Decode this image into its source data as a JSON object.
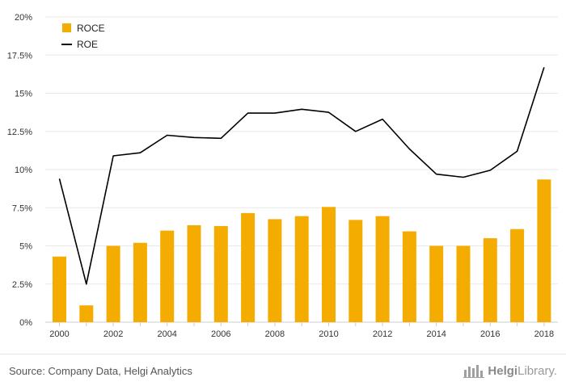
{
  "chart_data": {
    "type": "bar",
    "title": "",
    "xlabel": "",
    "ylabel": "",
    "categories": [
      "2000",
      "2001",
      "2002",
      "2003",
      "2004",
      "2005",
      "2006",
      "2007",
      "2008",
      "2009",
      "2010",
      "2011",
      "2012",
      "2013",
      "2014",
      "2015",
      "2016",
      "2017",
      "2018"
    ],
    "x_tick_labels": [
      "2000",
      "2002",
      "2004",
      "2006",
      "2008",
      "2010",
      "2012",
      "2014",
      "2016",
      "2018"
    ],
    "y_tick_labels": [
      "0%",
      "2.5%",
      "5%",
      "7.5%",
      "10%",
      "12.5%",
      "15%",
      "17.5%",
      "20%"
    ],
    "ylim": [
      0,
      20
    ],
    "y_unit": "%",
    "grid": true,
    "legend_position": "top-left",
    "series": [
      {
        "name": "ROCE",
        "type": "bar",
        "color": "#f5ac00",
        "values": [
          4.3,
          1.1,
          5.0,
          5.2,
          6.0,
          6.35,
          6.3,
          7.15,
          6.75,
          6.95,
          7.55,
          6.7,
          6.95,
          5.95,
          5.0,
          5.0,
          5.5,
          6.1,
          9.35
        ]
      },
      {
        "name": "ROE",
        "type": "line",
        "color": "#000000",
        "values": [
          9.4,
          2.5,
          10.9,
          11.1,
          12.25,
          12.1,
          12.05,
          13.7,
          13.7,
          13.95,
          13.75,
          12.5,
          13.3,
          11.35,
          9.7,
          9.5,
          9.95,
          11.2,
          16.7
        ]
      }
    ]
  },
  "footer": {
    "source": "Source: Company Data, Helgi Analytics",
    "brand_bold": "Helgi",
    "brand_light": "Library."
  }
}
